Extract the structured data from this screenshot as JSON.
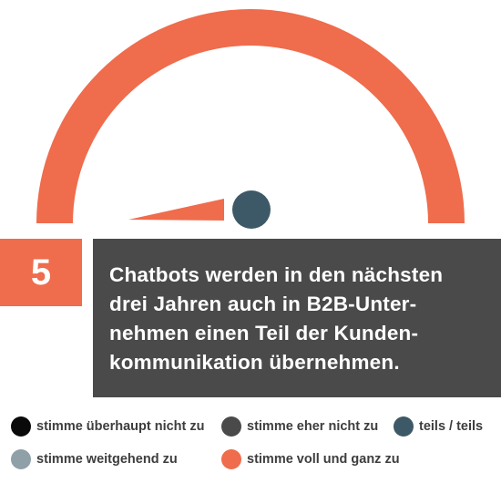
{
  "chart_data": {
    "type": "gauge",
    "statement_number": "5",
    "statement": [
      "Chatbots werden in den nächsten",
      "drei Jahren auch in B2B-Unter-",
      "nehmen einen Teil der Kunden-",
      "kommunikation übernehmen."
    ],
    "categories": [
      "stimme überhaupt nicht zu",
      "stimme eher nicht zu",
      "teils / teils",
      "stimme weitgehend zu",
      "stimme voll und ganz zu"
    ],
    "colors": [
      "#0a0a0a",
      "#4a4a4a",
      "#3d5967",
      "#8fa0a9",
      "#ef6c4c"
    ],
    "values": [
      0,
      0,
      0,
      0,
      100
    ],
    "unit": "%",
    "needle_category": "stimme voll und ganz zu",
    "needle_color": "#ef6c4c",
    "hub_color": "#3d5967"
  }
}
